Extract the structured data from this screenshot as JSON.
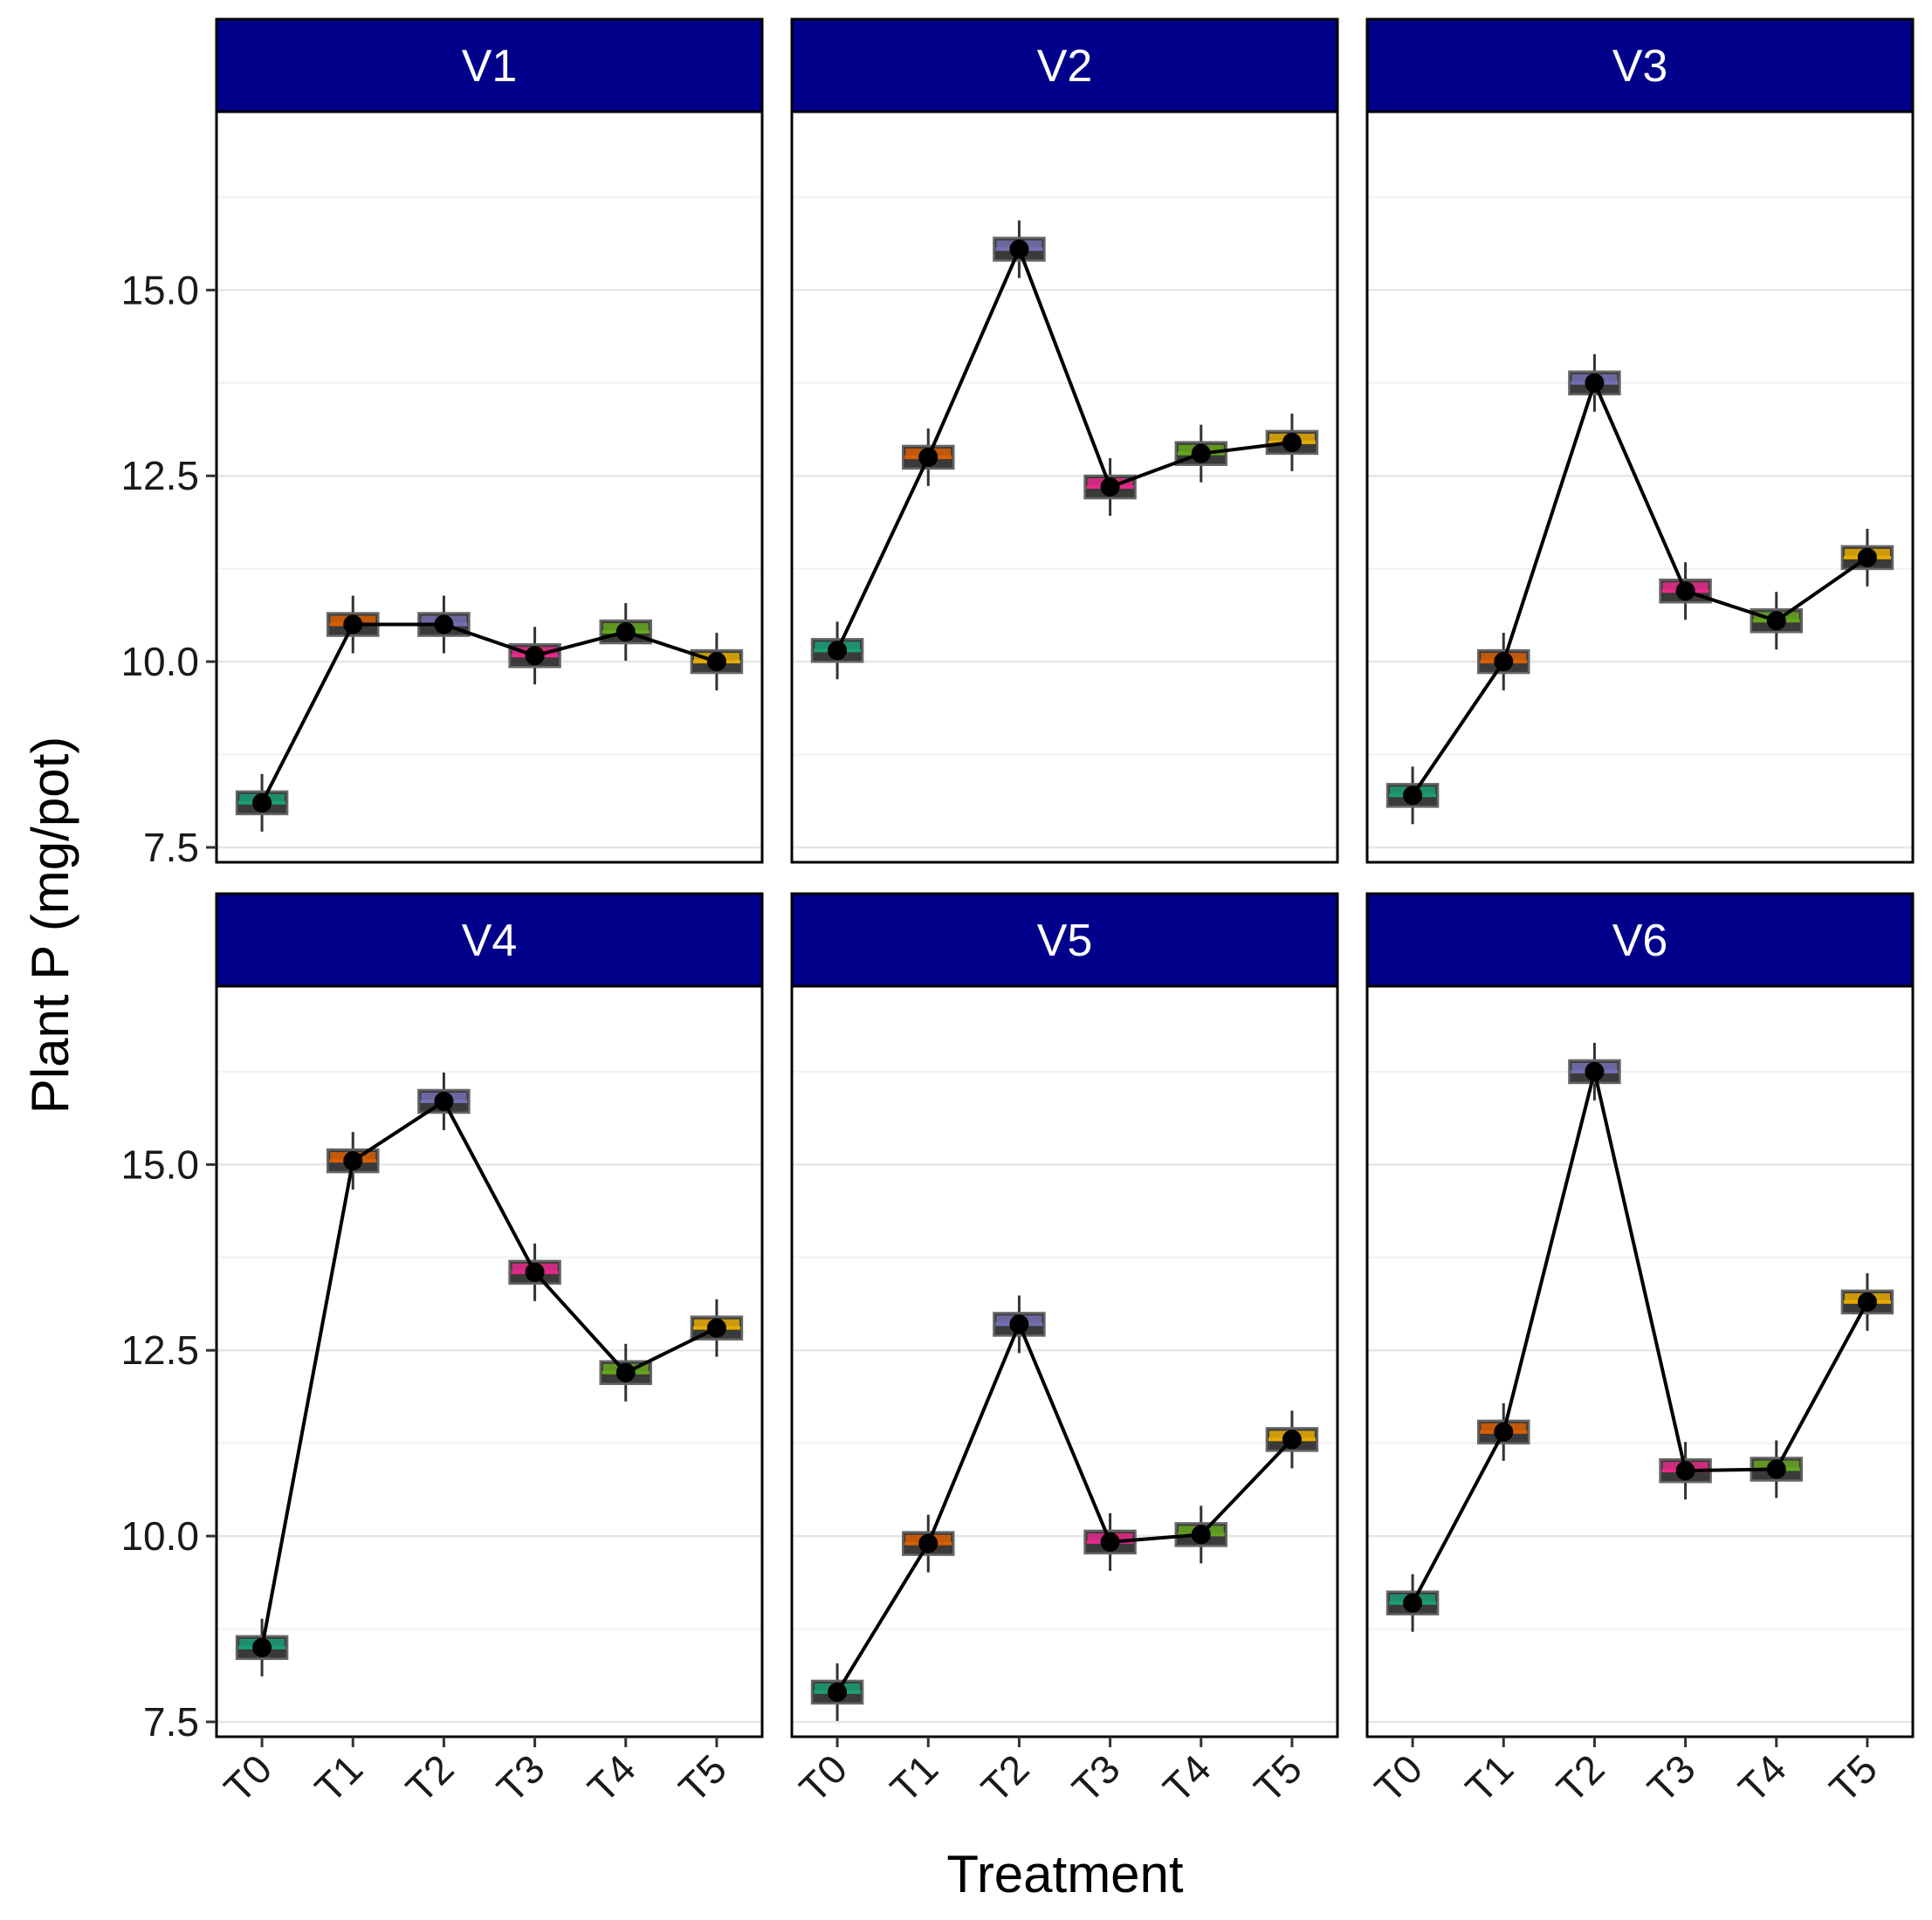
{
  "chart_data": {
    "type": "boxplot-line-facets",
    "xlabel": "Treatment",
    "ylabel": "Plant P (mg/pot)",
    "categories": [
      "T0",
      "T1",
      "T2",
      "T3",
      "T4",
      "T5"
    ],
    "ylim": [
      7.3,
      17.4
    ],
    "yticks": [
      7.5,
      10.0,
      12.5,
      15.0
    ],
    "ytick_labels": [
      "7.5",
      "10.0",
      "12.5",
      "15.0"
    ],
    "minor_gridlines": [
      8.75,
      11.25,
      13.75,
      16.25
    ],
    "grid": true,
    "strip_color": "#00008B",
    "treatment_colors": [
      "#1B9E77",
      "#D95F02",
      "#7570B3",
      "#E7298A",
      "#66A61E",
      "#E6AB02"
    ],
    "box_fill": "#3A3A3A",
    "facets": [
      {
        "name": "V1",
        "values": [
          8.1,
          10.5,
          10.5,
          10.08,
          10.4,
          10.0
        ]
      },
      {
        "name": "V2",
        "values": [
          10.15,
          12.75,
          15.55,
          12.35,
          12.8,
          12.95
        ]
      },
      {
        "name": "V3",
        "values": [
          8.2,
          10.0,
          13.75,
          10.95,
          10.55,
          11.4
        ]
      },
      {
        "name": "V4",
        "values": [
          8.5,
          15.05,
          15.85,
          13.55,
          12.2,
          12.8
        ]
      },
      {
        "name": "V5",
        "values": [
          7.9,
          9.9,
          12.85,
          9.92,
          10.02,
          11.3
        ]
      },
      {
        "name": "V6",
        "values": [
          9.1,
          11.4,
          16.25,
          10.88,
          10.9,
          13.15
        ]
      }
    ]
  }
}
